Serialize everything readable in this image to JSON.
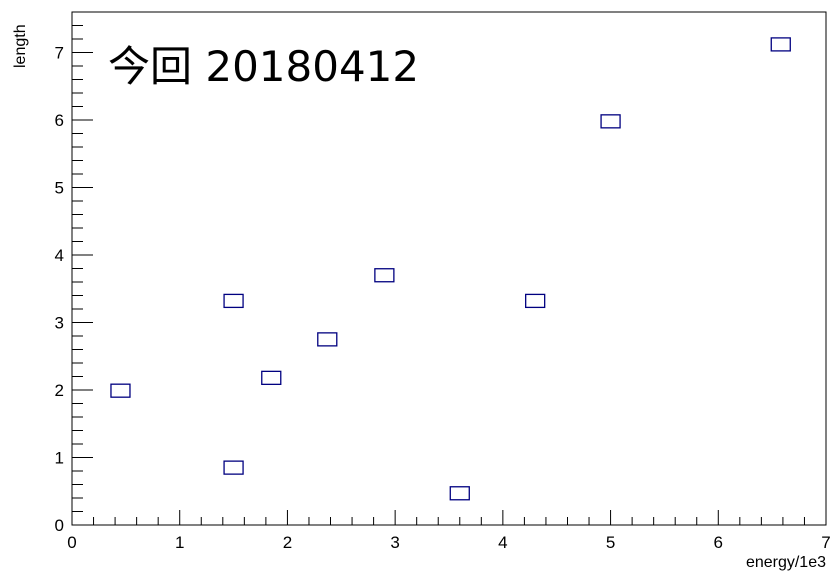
{
  "chart_data": {
    "type": "scatter",
    "title": "",
    "annotation": "今回 20180412",
    "xlabel": "energy/1e3",
    "ylabel": "length",
    "xlim": [
      0,
      7
    ],
    "ylim": [
      0,
      7.6
    ],
    "xticks": [
      "0",
      "1",
      "2",
      "3",
      "4",
      "5",
      "6",
      "7"
    ],
    "yticks": [
      "0",
      "1",
      "2",
      "3",
      "4",
      "5",
      "6",
      "7"
    ],
    "grid": false,
    "marker_color": "#000080",
    "marker": "open-rectangle",
    "points": [
      {
        "x": 0.45,
        "y": 1.99
      },
      {
        "x": 1.5,
        "y": 0.85
      },
      {
        "x": 1.5,
        "y": 3.32
      },
      {
        "x": 1.85,
        "y": 2.18
      },
      {
        "x": 2.37,
        "y": 2.75
      },
      {
        "x": 2.9,
        "y": 3.7
      },
      {
        "x": 3.6,
        "y": 0.47
      },
      {
        "x": 4.3,
        "y": 3.32
      },
      {
        "x": 5.0,
        "y": 5.98
      },
      {
        "x": 6.58,
        "y": 7.12
      }
    ]
  }
}
